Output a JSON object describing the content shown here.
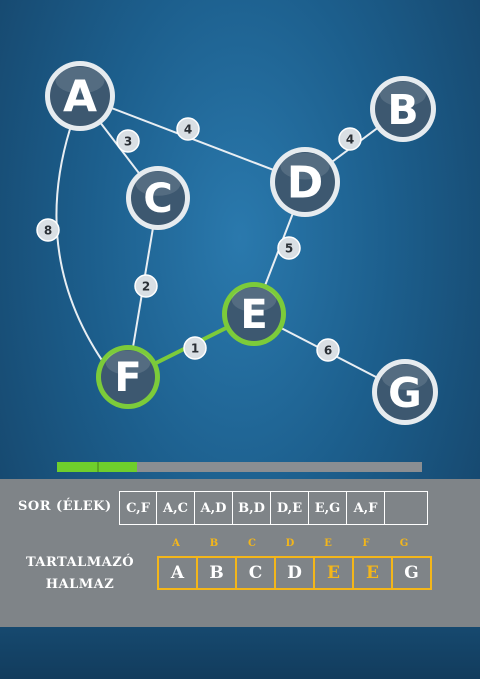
{
  "graph": {
    "nodes": [
      {
        "id": "A",
        "label": "A",
        "highlighted": false
      },
      {
        "id": "B",
        "label": "B",
        "highlighted": false
      },
      {
        "id": "C",
        "label": "C",
        "highlighted": false
      },
      {
        "id": "D",
        "label": "D",
        "highlighted": false
      },
      {
        "id": "E",
        "label": "E",
        "highlighted": true
      },
      {
        "id": "F",
        "label": "F",
        "highlighted": true
      },
      {
        "id": "G",
        "label": "G",
        "highlighted": false
      }
    ],
    "edges": [
      {
        "from": "A",
        "to": "C",
        "weight": "3",
        "highlighted": false
      },
      {
        "from": "A",
        "to": "D",
        "weight": "4",
        "highlighted": false
      },
      {
        "from": "A",
        "to": "F",
        "weight": "8",
        "highlighted": false
      },
      {
        "from": "D",
        "to": "B",
        "weight": "4",
        "highlighted": false
      },
      {
        "from": "C",
        "to": "F",
        "weight": "2",
        "highlighted": false
      },
      {
        "from": "D",
        "to": "E",
        "weight": "5",
        "highlighted": false
      },
      {
        "from": "F",
        "to": "E",
        "weight": "1",
        "highlighted": true
      },
      {
        "from": "E",
        "to": "G",
        "weight": "6",
        "highlighted": false
      }
    ]
  },
  "progress": 0.22,
  "colors": {
    "highlight": "#7ccb3a",
    "set_accent": "#f3b61a"
  },
  "sor": {
    "label": "SOR (ÉLEK)",
    "cells": [
      "C,F",
      "A,C",
      "A,D",
      "B,D",
      "D,E",
      "E,G",
      "A,F",
      ""
    ]
  },
  "halmaz": {
    "label_line1": "TARTALMAZÓ",
    "label_line2": "HALMAZ",
    "headers": [
      "A",
      "B",
      "C",
      "D",
      "E",
      "F",
      "G"
    ],
    "values": [
      "A",
      "B",
      "C",
      "D",
      "E",
      "E",
      "G"
    ],
    "highlighted": [
      false,
      false,
      false,
      false,
      true,
      true,
      false
    ]
  }
}
